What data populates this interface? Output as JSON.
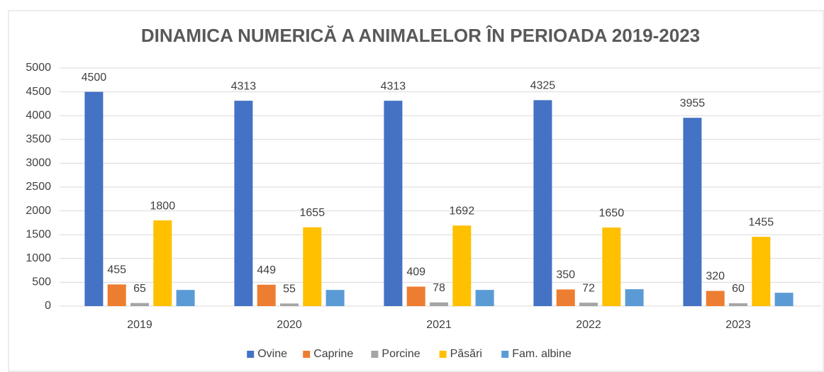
{
  "chart_data": {
    "type": "bar",
    "title": "DINAMICA NUMERICĂ A ANIMALELOR ÎN PERIOADA 2019-2023",
    "categories": [
      "2019",
      "2020",
      "2021",
      "2022",
      "2023"
    ],
    "series": [
      {
        "name": "Ovine",
        "color": "#4472c4",
        "values": [
          4500,
          4313,
          4313,
          4325,
          3955
        ],
        "data_labels": true
      },
      {
        "name": "Caprine",
        "color": "#ed7d31",
        "values": [
          455,
          449,
          409,
          350,
          320
        ],
        "data_labels": true
      },
      {
        "name": "Porcine",
        "color": "#a5a5a5",
        "values": [
          65,
          55,
          78,
          72,
          60
        ],
        "data_labels": true
      },
      {
        "name": "Păsări",
        "color": "#ffc000",
        "values": [
          1800,
          1655,
          1692,
          1650,
          1455
        ],
        "data_labels": true
      },
      {
        "name": "Fam. albine",
        "color": "#5b9bd5",
        "values": [
          340,
          340,
          340,
          355,
          280
        ],
        "data_labels": false
      }
    ],
    "ylim": [
      0,
      5000
    ],
    "yticks": [
      0,
      500,
      1000,
      1500,
      2000,
      2500,
      3000,
      3500,
      4000,
      4500,
      5000
    ],
    "grid": true,
    "legend": "bottom"
  }
}
